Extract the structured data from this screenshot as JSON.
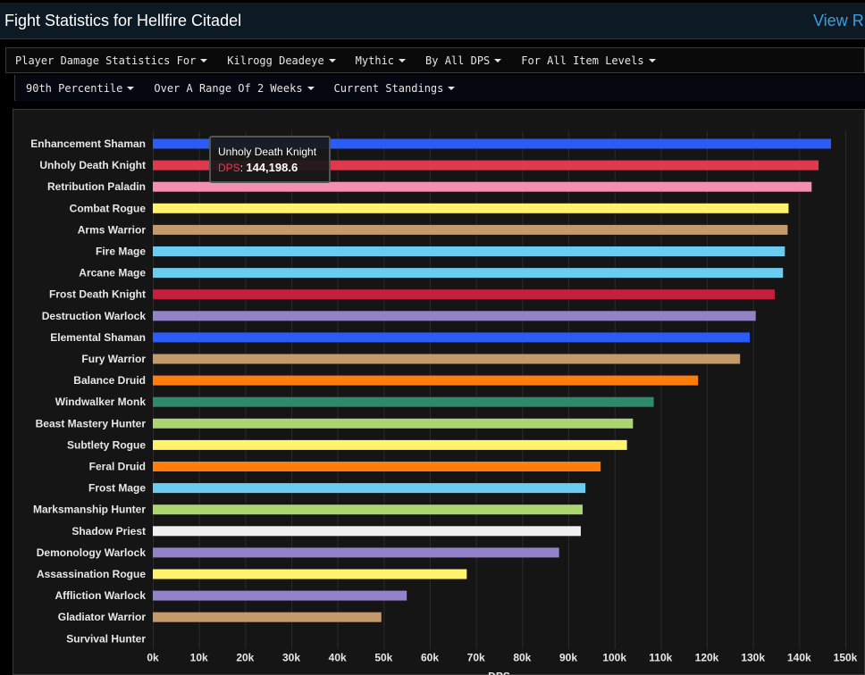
{
  "header": {
    "title": "Fight Statistics for Hellfire Citadel",
    "view_link": "View R"
  },
  "filters_row1": [
    {
      "label": "Player Damage Statistics For"
    },
    {
      "label": "Kilrogg Deadeye"
    },
    {
      "label": "Mythic"
    },
    {
      "label": "By All DPS"
    },
    {
      "label": "For All Item Levels"
    }
  ],
  "filters_row2": [
    {
      "label": "90th Percentile"
    },
    {
      "label": "Over A Range Of 2 Weeks"
    },
    {
      "label": "Current Standings"
    }
  ],
  "tooltip": {
    "title": "Unholy Death Knight",
    "key": "DPS",
    "sep": ": ",
    "value": "144,198.6"
  },
  "chart_data": {
    "type": "bar",
    "orientation": "horizontal",
    "title": "",
    "xlabel": "DPS",
    "ylabel": "",
    "xlim": [
      0,
      150000
    ],
    "grid": true,
    "x_ticks": [
      0,
      10000,
      20000,
      30000,
      40000,
      50000,
      60000,
      70000,
      80000,
      90000,
      100000,
      110000,
      120000,
      130000,
      140000,
      150000
    ],
    "x_tick_labels": [
      "0k",
      "10k",
      "20k",
      "30k",
      "40k",
      "50k",
      "60k",
      "70k",
      "80k",
      "90k",
      "100k",
      "110k",
      "120k",
      "130k",
      "140k",
      "150k"
    ],
    "categories": [
      "Enhancement Shaman",
      "Unholy Death Knight",
      "Retribution Paladin",
      "Combat Rogue",
      "Arms Warrior",
      "Fire Mage",
      "Arcane Mage",
      "Frost Death Knight",
      "Destruction Warlock",
      "Elemental Shaman",
      "Fury Warrior",
      "Balance Druid",
      "Windwalker Monk",
      "Beast Mastery Hunter",
      "Subtlety Rogue",
      "Feral Druid",
      "Frost Mage",
      "Marksmanship Hunter",
      "Shadow Priest",
      "Demonology Warlock",
      "Assassination Rogue",
      "Affliction Warlock",
      "Gladiator Warrior",
      "Survival Hunter"
    ],
    "values": [
      146900,
      144198.6,
      142700,
      137700,
      137500,
      136900,
      136500,
      134700,
      130600,
      129300,
      127200,
      118100,
      108500,
      104000,
      102700,
      97000,
      93700,
      93100,
      92700,
      88000,
      68000,
      55000,
      49500,
      0
    ],
    "colors": [
      "#2b5cf5",
      "#e0394e",
      "#f48fb1",
      "#fff36b",
      "#c49a6c",
      "#69ccf0",
      "#69ccf0",
      "#c41f3b",
      "#9482c9",
      "#2b5cf5",
      "#c49a6c",
      "#ff7d0a",
      "#2e8b6a",
      "#abd473",
      "#fff36b",
      "#ff7d0a",
      "#69ccf0",
      "#abd473",
      "#f0f0f0",
      "#9482c9",
      "#fff36b",
      "#9482c9",
      "#c49a6c",
      "#abd473"
    ]
  }
}
